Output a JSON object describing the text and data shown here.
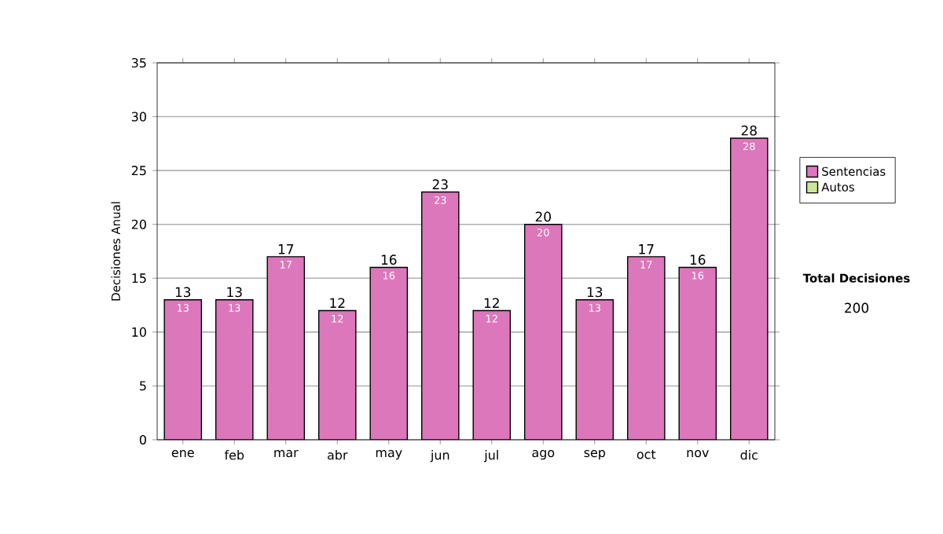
{
  "chart_data": {
    "type": "bar",
    "stacked": true,
    "ylabel": "Decisiones Anual",
    "categories": [
      "ene",
      "feb",
      "mar",
      "abr",
      "may",
      "jun",
      "jul",
      "ago",
      "sep",
      "oct",
      "nov",
      "dic"
    ],
    "series": [
      {
        "name": "Sentencias",
        "color": "#dd77bb",
        "values": [
          13,
          13,
          17,
          12,
          16,
          23,
          12,
          20,
          13,
          17,
          16,
          28
        ],
        "value_labels": [
          "13",
          "13",
          "17",
          "12",
          "16",
          "23",
          "12",
          "20",
          "13",
          "17",
          "16",
          "28"
        ]
      },
      {
        "name": "Autos",
        "color": "#cce699",
        "values": [
          0,
          0,
          0,
          0,
          0,
          0,
          0,
          0,
          0,
          0,
          0,
          0
        ]
      }
    ],
    "totals": [
      "13",
      "13",
      "17",
      "12",
      "16",
      "23",
      "12",
      "20",
      "13",
      "17",
      "16",
      "28"
    ],
    "ylim": [
      0,
      35
    ],
    "yticks": [
      0,
      5,
      10,
      15,
      20,
      25,
      30,
      35
    ],
    "grid": "y",
    "legend": "right",
    "annotations": [
      "Total Decisiones",
      "200"
    ]
  }
}
